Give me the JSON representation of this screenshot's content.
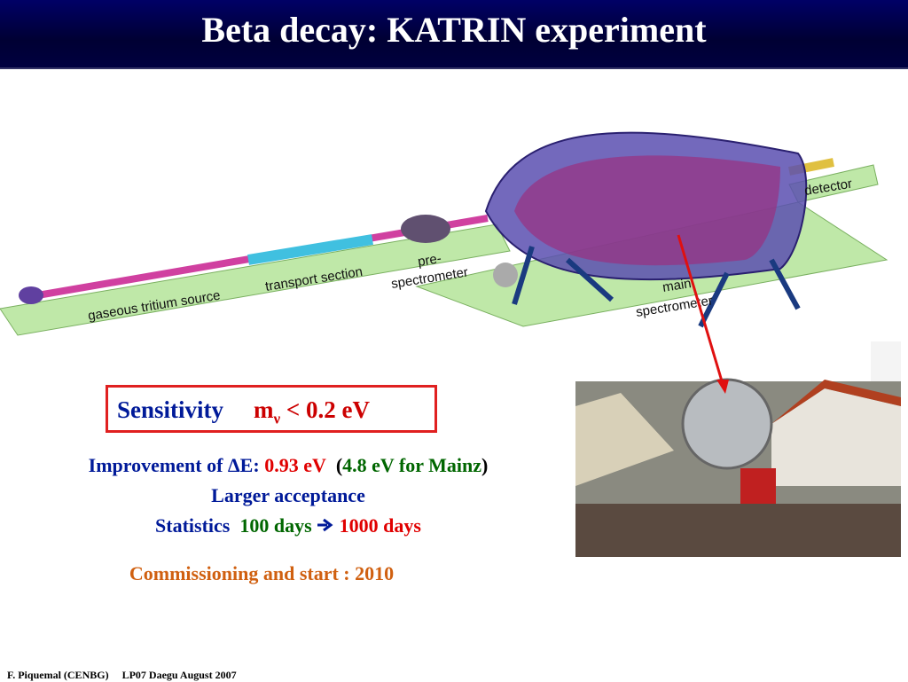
{
  "header": {
    "title": "Beta decay: KATRIN experiment"
  },
  "diagram": {
    "labels": {
      "source": "gaseous tritium source",
      "transport": "transport section",
      "pre_spectrometer": [
        "pre-",
        "spectrometer"
      ],
      "main_spectrometer": [
        "main",
        "spectrometer"
      ],
      "detector": "detector"
    }
  },
  "sensitivity": {
    "label": "Sensitivity",
    "symbol": "m",
    "subscript": "ν",
    "bound": "< 0.2 eV"
  },
  "improvement": {
    "prefix": "Improvement of ",
    "delta": "ΔE: ",
    "value": "0.93 eV",
    "open": "(",
    "mainz": "4.8 eV for Mainz",
    "close": ")"
  },
  "acceptance": "Larger acceptance",
  "statistics": {
    "label": "Statistics",
    "from": "100 days",
    "to": "1000 days"
  },
  "commissioning": "Commissioning and start : 2010",
  "footer": {
    "author": "F. Piquemal (CENBG)",
    "conference": "LP07 Daegu August 2007"
  }
}
